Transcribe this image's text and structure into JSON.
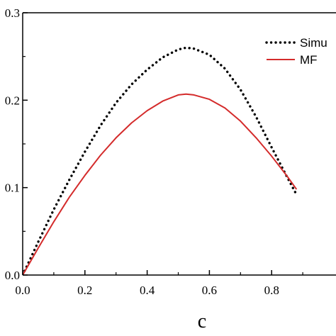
{
  "chart_data": {
    "type": "line",
    "title": "",
    "xlabel": "c",
    "ylabel": "",
    "xlim": [
      0,
      0.88
    ],
    "ylim": [
      0,
      0.3
    ],
    "grid": false,
    "legend_position": "top-right",
    "x_ticks": [
      "0.0",
      "0.2",
      "0.4",
      "0.6",
      "0.8"
    ],
    "y_ticks": [
      "0.0",
      "0.1",
      "0.2",
      "0.3"
    ],
    "series": [
      {
        "name": "Simu",
        "style": "dotted",
        "color": "#000000",
        "x": [
          0.0,
          0.05,
          0.1,
          0.15,
          0.2,
          0.25,
          0.3,
          0.35,
          0.4,
          0.45,
          0.5,
          0.525,
          0.55,
          0.6,
          0.65,
          0.7,
          0.75,
          0.8,
          0.85,
          0.88
        ],
        "values": [
          0.0,
          0.038,
          0.075,
          0.109,
          0.141,
          0.171,
          0.197,
          0.218,
          0.235,
          0.249,
          0.258,
          0.26,
          0.259,
          0.252,
          0.236,
          0.212,
          0.181,
          0.146,
          0.112,
          0.092
        ]
      },
      {
        "name": "MF",
        "style": "solid",
        "color": "#d42b2b",
        "x": [
          0.0,
          0.05,
          0.1,
          0.15,
          0.2,
          0.25,
          0.3,
          0.35,
          0.4,
          0.45,
          0.5,
          0.525,
          0.55,
          0.6,
          0.65,
          0.7,
          0.75,
          0.8,
          0.85,
          0.88
        ],
        "values": [
          0.0,
          0.031,
          0.061,
          0.089,
          0.114,
          0.137,
          0.157,
          0.174,
          0.188,
          0.199,
          0.206,
          0.207,
          0.206,
          0.201,
          0.191,
          0.176,
          0.157,
          0.136,
          0.113,
          0.098
        ]
      }
    ]
  }
}
